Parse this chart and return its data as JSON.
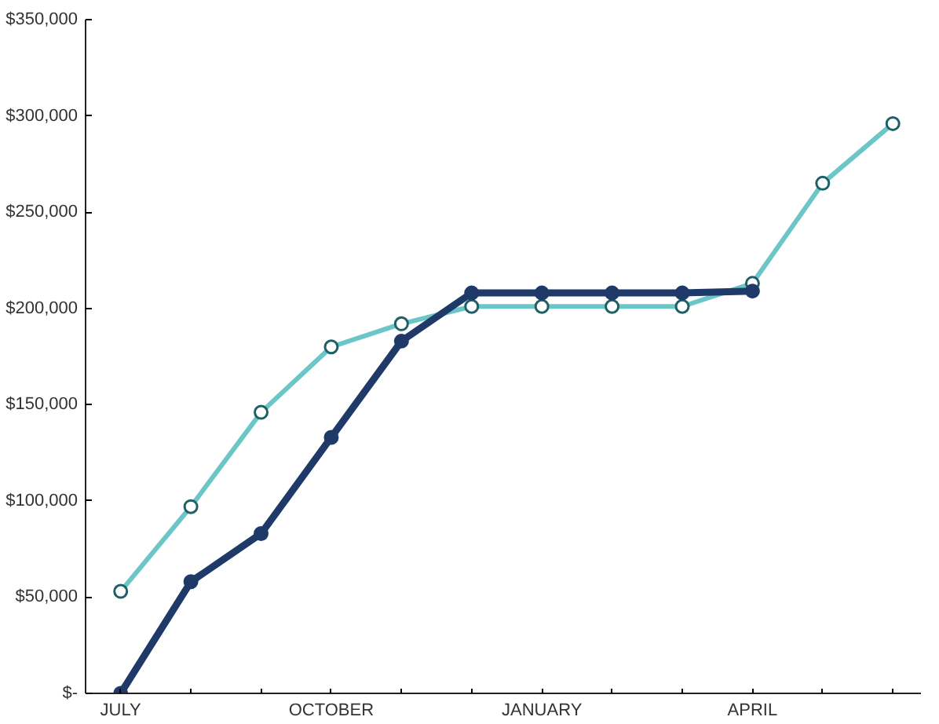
{
  "chart_data": {
    "type": "line",
    "categories": [
      "JULY",
      null,
      null,
      "OCTOBER",
      null,
      null,
      "JANUARY",
      null,
      null,
      "APRIL",
      null,
      null
    ],
    "series": [
      {
        "color": "#6cc6c8",
        "values": [
          53000,
          97000,
          146000,
          180000,
          192000,
          201000,
          201000,
          201000,
          201000,
          213000,
          265000,
          296000
        ]
      },
      {
        "color": "#1f3a68",
        "values": [
          0,
          58000,
          83000,
          133000,
          183000,
          208000,
          208000,
          208000,
          208000,
          209000,
          null,
          null
        ]
      }
    ],
    "ylim": [
      0,
      350000
    ],
    "yticks": [
      {
        "value": 0,
        "label": "$-"
      },
      {
        "value": 50000,
        "label": "$50,000"
      },
      {
        "value": 100000,
        "label": "$100,000"
      },
      {
        "value": 150000,
        "label": "$150,000"
      },
      {
        "value": 200000,
        "label": "$200,000"
      },
      {
        "value": 250000,
        "label": "$250,000"
      },
      {
        "value": 300000,
        "label": "$300,000"
      },
      {
        "value": 350000,
        "label": "$350,000"
      }
    ],
    "grid": false,
    "marker": "circle",
    "line_style": "solid"
  }
}
